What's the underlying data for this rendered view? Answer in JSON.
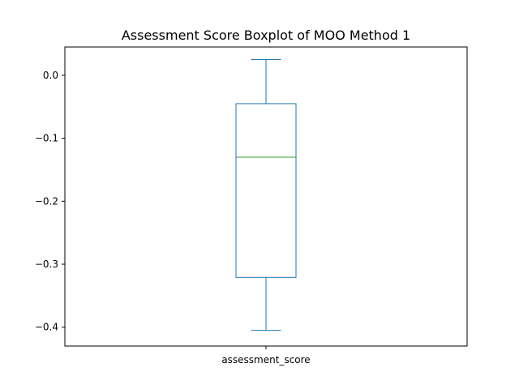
{
  "chart_data": {
    "type": "boxplot",
    "title": "Assessment Score Boxplot of MOO Method 1",
    "xlabel": "",
    "ylabel": "",
    "categories": [
      "assessment_score"
    ],
    "boxes": [
      {
        "category": "assessment_score",
        "whisker_low": -0.405,
        "q1": -0.321,
        "median": -0.13,
        "q3": -0.045,
        "whisker_high": 0.025
      }
    ],
    "ylim": [
      -0.43,
      0.045
    ],
    "yticks": [
      0.0,
      -0.1,
      -0.2,
      -0.3,
      -0.4
    ],
    "ytick_labels": [
      "0.0",
      "−0.1",
      "−0.2",
      "−0.3",
      "−0.4"
    ],
    "grid": false,
    "colors": {
      "box": "#1f77b4",
      "median": "#2ca02c",
      "axes": "#000000"
    }
  }
}
